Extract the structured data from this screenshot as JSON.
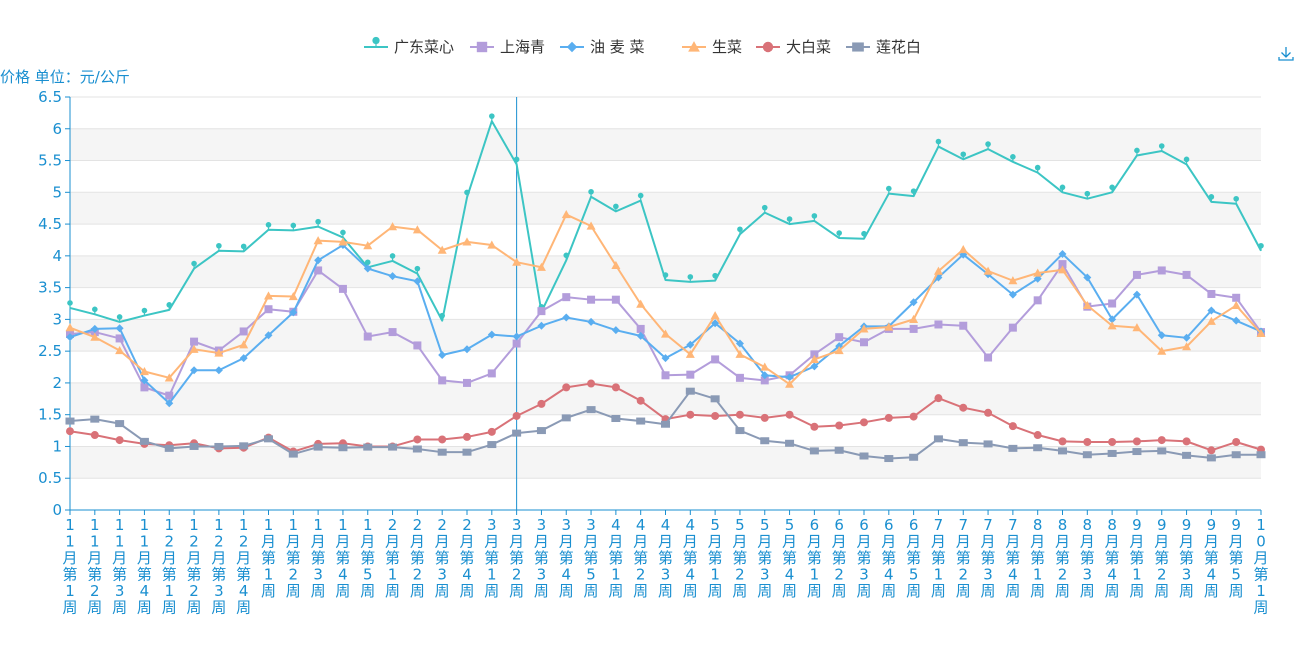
{
  "chart_data": {
    "type": "line",
    "ylabel": "价格 单位：元/公斤",
    "ylim": [
      0,
      6.5
    ],
    "yticks": [
      "0",
      "0.5",
      "1",
      "1.5",
      "2",
      "2.5",
      "3",
      "3.5",
      "4",
      "4.5",
      "5",
      "5.5",
      "6",
      "6.5"
    ],
    "grid": "horizontal-banded",
    "legend_position": "top-center",
    "highlight_category_index": 18,
    "categories": [
      "11月第1周",
      "11月第2周",
      "11月第3周",
      "11月第4周",
      "12月第1周",
      "12月第2周",
      "12月第3周",
      "12月第4周",
      "1月第1周",
      "1月第2周",
      "1月第3周",
      "1月第4周",
      "1月第5周",
      "2月第1周",
      "2月第2周",
      "2月第3周",
      "2月第4周",
      "3月第1周",
      "3月第2周",
      "3月第3周",
      "3月第4周",
      "3月第5周",
      "4月第1周",
      "4月第2周",
      "4月第3周",
      "4月第4周",
      "5月第1周",
      "5月第2周",
      "5月第3周",
      "5月第4周",
      "6月第1周",
      "6月第2周",
      "6月第3周",
      "6月第4周",
      "6月第5周",
      "7月第1周",
      "7月第2周",
      "7月第3周",
      "7月第4周",
      "8月第1周",
      "8月第2周",
      "8月第3周",
      "8月第4周",
      "9月第1周",
      "9月第2周",
      "9月第3周",
      "9月第4周",
      "9月第5周",
      "10月第1周"
    ],
    "series": [
      {
        "name": "广东菜心",
        "color": "#3cc5c4",
        "marker": "pin",
        "values": [
          3.18,
          3.08,
          2.96,
          3.06,
          3.15,
          3.8,
          4.08,
          4.07,
          4.41,
          4.4,
          4.46,
          4.29,
          3.82,
          3.92,
          3.72,
          2.98,
          4.92,
          6.12,
          5.44,
          3.12,
          3.93,
          4.93,
          4.7,
          4.87,
          3.62,
          3.59,
          3.61,
          4.34,
          4.68,
          4.5,
          4.55,
          4.28,
          4.27,
          4.98,
          4.94,
          5.72,
          5.52,
          5.68,
          5.48,
          5.31,
          5.0,
          4.9,
          5.0,
          5.58,
          5.65,
          5.44,
          4.85,
          4.82,
          4.08
        ]
      },
      {
        "name": "上海青",
        "color": "#b39ddb",
        "marker": "square",
        "values": [
          2.77,
          2.8,
          2.7,
          1.93,
          1.8,
          2.65,
          2.51,
          2.81,
          3.16,
          3.12,
          3.77,
          3.48,
          2.73,
          2.8,
          2.59,
          2.04,
          2.0,
          2.15,
          2.62,
          3.13,
          3.35,
          3.31,
          3.31,
          2.85,
          2.12,
          2.13,
          2.37,
          2.08,
          2.04,
          2.12,
          2.45,
          2.72,
          2.64,
          2.85,
          2.85,
          2.92,
          2.9,
          2.4,
          2.87,
          3.3,
          3.87,
          3.2,
          3.25,
          3.7,
          3.77,
          3.7,
          3.4,
          3.34,
          2.8
        ]
      },
      {
        "name": "油 麦 菜",
        "color": "#5aaef0",
        "marker": "diamond",
        "values": [
          2.72,
          2.85,
          2.86,
          2.04,
          1.68,
          2.2,
          2.2,
          2.39,
          2.75,
          3.11,
          3.93,
          4.17,
          3.8,
          3.68,
          3.6,
          2.44,
          2.53,
          2.76,
          2.73,
          2.9,
          3.03,
          2.96,
          2.83,
          2.74,
          2.39,
          2.6,
          2.94,
          2.62,
          2.12,
          2.09,
          2.26,
          2.58,
          2.89,
          2.89,
          3.27,
          3.66,
          4.02,
          3.71,
          3.39,
          3.64,
          4.03,
          3.66,
          3.0,
          3.39,
          2.75,
          2.71,
          3.14,
          2.98,
          2.81
        ]
      },
      {
        "name": "生菜",
        "color": "#ffb677",
        "marker": "triangle",
        "values": [
          2.87,
          2.72,
          2.51,
          2.18,
          2.08,
          2.53,
          2.47,
          2.6,
          3.37,
          3.36,
          4.24,
          4.22,
          4.16,
          4.46,
          4.41,
          4.09,
          4.22,
          4.17,
          3.9,
          3.82,
          4.65,
          4.47,
          3.85,
          3.24,
          2.77,
          2.45,
          3.06,
          2.45,
          2.25,
          1.98,
          2.37,
          2.51,
          2.85,
          2.88,
          3.0,
          3.76,
          4.1,
          3.76,
          3.61,
          3.73,
          3.78,
          3.22,
          2.9,
          2.87,
          2.5,
          2.57,
          2.97,
          3.22,
          2.78
        ]
      },
      {
        "name": "大白菜",
        "color": "#d97278",
        "marker": "circle",
        "values": [
          1.24,
          1.18,
          1.1,
          1.04,
          1.02,
          1.05,
          0.97,
          0.98,
          1.14,
          0.92,
          1.04,
          1.05,
          1.0,
          1.0,
          1.11,
          1.11,
          1.15,
          1.23,
          1.48,
          1.67,
          1.93,
          1.99,
          1.93,
          1.72,
          1.43,
          1.5,
          1.48,
          1.5,
          1.45,
          1.5,
          1.31,
          1.33,
          1.38,
          1.45,
          1.47,
          1.76,
          1.61,
          1.53,
          1.32,
          1.18,
          1.08,
          1.07,
          1.07,
          1.08,
          1.1,
          1.08,
          0.94,
          1.07,
          0.95
        ]
      },
      {
        "name": "莲花白",
        "color": "#8a9ab5",
        "marker": "rect",
        "values": [
          1.4,
          1.43,
          1.36,
          1.08,
          0.97,
          1.0,
          1.0,
          1.01,
          1.12,
          0.88,
          0.99,
          0.98,
          0.99,
          0.99,
          0.96,
          0.91,
          0.91,
          1.03,
          1.21,
          1.25,
          1.45,
          1.58,
          1.44,
          1.4,
          1.35,
          1.87,
          1.75,
          1.25,
          1.09,
          1.05,
          0.93,
          0.94,
          0.85,
          0.81,
          0.83,
          1.12,
          1.06,
          1.04,
          0.97,
          0.98,
          0.93,
          0.87,
          0.89,
          0.92,
          0.93,
          0.86,
          0.82,
          0.87,
          0.87
        ]
      }
    ]
  },
  "colors": {
    "axis": "#1a8fd0",
    "band": "#f5f5f5",
    "gridline": "#e3e3e3",
    "legend_text": "#333333"
  },
  "icons": {
    "download": "download-icon"
  }
}
